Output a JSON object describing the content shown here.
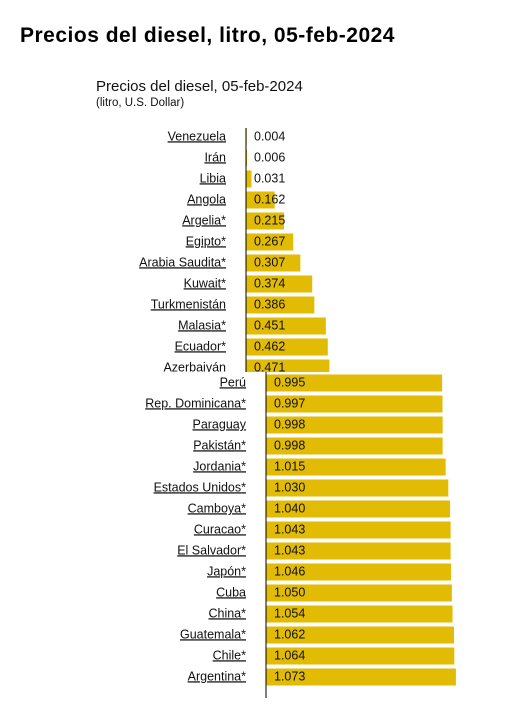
{
  "title": "Precios del diesel, litro, 05-feb-2024",
  "chart_data": [
    {
      "type": "bar",
      "orientation": "horizontal",
      "title": "Precios del diesel, 05-feb-2024",
      "subtitle": "(litro, U.S. Dollar)",
      "color": "#e2bb05",
      "categories": [
        "Venezuela",
        "Irán",
        "Libia",
        "Angola",
        "Argelia*",
        "Egipto*",
        "Arabia Saudita*",
        "Kuwait*",
        "Turkmenistán",
        "Malasia*",
        "Ecuador*",
        "Azerbaiyán"
      ],
      "values": [
        0.004,
        0.006,
        0.031,
        0.162,
        0.215,
        0.267,
        0.307,
        0.374,
        0.386,
        0.451,
        0.462,
        0.471
      ],
      "value_labels": [
        "0.004",
        "0.006",
        "0.031",
        "0.162",
        "0.215",
        "0.267",
        "0.307",
        "0.374",
        "0.386",
        "0.451",
        "0.462",
        "0.471"
      ]
    },
    {
      "type": "bar",
      "orientation": "horizontal",
      "color": "#e2bb05",
      "categories": [
        "Perú",
        "Rep. Dominicana*",
        "Paraguay",
        "Pakistán*",
        "Jordania*",
        "Estados Unidos*",
        "Camboya*",
        "Curacao*",
        "El Salvador*",
        "Japón*",
        "Cuba",
        "China*",
        "Guatemala*",
        "Chile*",
        "Argentina*"
      ],
      "values": [
        0.995,
        0.997,
        0.998,
        0.998,
        1.015,
        1.03,
        1.04,
        1.043,
        1.043,
        1.046,
        1.05,
        1.054,
        1.062,
        1.064,
        1.073
      ],
      "value_labels": [
        "0.995",
        "0.997",
        "0.998",
        "0.998",
        "1.015",
        "1.030",
        "1.040",
        "1.043",
        "1.043",
        "1.046",
        "1.050",
        "1.054",
        "1.062",
        "1.064",
        "1.073"
      ]
    }
  ]
}
